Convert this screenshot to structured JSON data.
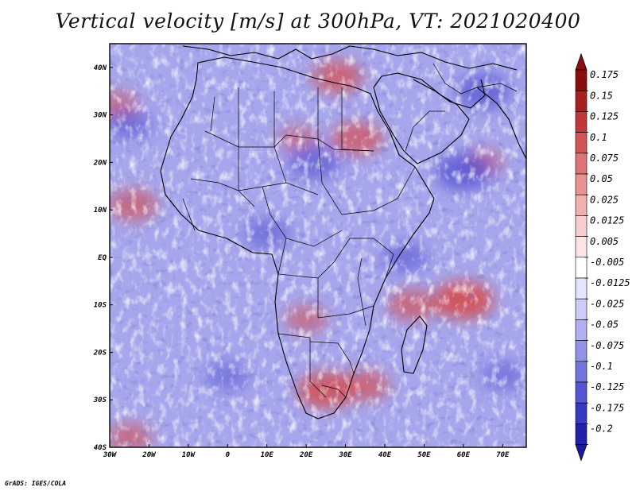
{
  "title": "Vertical velocity [m/s] at 300hPa, VT: 2021020400",
  "credit": "GrADS: IGES/COLA",
  "map": {
    "lon_range": [
      -30,
      76
    ],
    "lat_range": [
      -40,
      45
    ],
    "lon_ticks": [
      {
        "value": -30,
        "label": "30W"
      },
      {
        "value": -20,
        "label": "20W"
      },
      {
        "value": -10,
        "label": "10W"
      },
      {
        "value": 0,
        "label": "0"
      },
      {
        "value": 10,
        "label": "10E"
      },
      {
        "value": 20,
        "label": "20E"
      },
      {
        "value": 30,
        "label": "30E"
      },
      {
        "value": 40,
        "label": "40E"
      },
      {
        "value": 50,
        "label": "50E"
      },
      {
        "value": 60,
        "label": "60E"
      },
      {
        "value": 70,
        "label": "70E"
      }
    ],
    "lat_ticks": [
      {
        "value": 40,
        "label": "40N"
      },
      {
        "value": 30,
        "label": "30N"
      },
      {
        "value": 20,
        "label": "20N"
      },
      {
        "value": 10,
        "label": "10N"
      },
      {
        "value": 0,
        "label": "EQ"
      },
      {
        "value": -10,
        "label": "10S"
      },
      {
        "value": -20,
        "label": "20S"
      },
      {
        "value": -30,
        "label": "30S"
      },
      {
        "value": -40,
        "label": "40S"
      }
    ]
  },
  "colorbar": {
    "levels": [
      {
        "label": "0.175",
        "color": "#8b0e0e"
      },
      {
        "label": "0.15",
        "color": "#a82020"
      },
      {
        "label": "0.125",
        "color": "#c03838"
      },
      {
        "label": "0.1",
        "color": "#d25656"
      },
      {
        "label": "0.075",
        "color": "#de7474"
      },
      {
        "label": "0.05",
        "color": "#e89292"
      },
      {
        "label": "0.025",
        "color": "#f0b0b0"
      },
      {
        "label": "0.0125",
        "color": "#f6cccc"
      },
      {
        "label": "0.005",
        "color": "#fbe4e4"
      },
      {
        "label": "-0.005",
        "color": "#ffffff"
      },
      {
        "label": "-0.0125",
        "color": "#e4e4fb"
      },
      {
        "label": "-0.025",
        "color": "#ccccf6"
      },
      {
        "label": "-0.05",
        "color": "#b0b0f0"
      },
      {
        "label": "-0.075",
        "color": "#9292e8"
      },
      {
        "label": "-0.1",
        "color": "#7474de"
      },
      {
        "label": "-0.125",
        "color": "#5656d2"
      },
      {
        "label": "-0.175",
        "color": "#3838c0"
      },
      {
        "label": "-0.2",
        "color": "#2020a8"
      }
    ],
    "top_color": "#8b0e0e",
    "bottom_color": "#1a1a9a"
  },
  "field": {
    "base_color": "#a6a6ec",
    "positive_regions": [
      {
        "lon": -24,
        "lat": 11,
        "value": 0.06
      },
      {
        "lon": -28,
        "lat": 32,
        "value": 0.04
      },
      {
        "lon": 33,
        "lat": 25,
        "value": 0.07
      },
      {
        "lon": 25,
        "lat": -28,
        "value": 0.09
      },
      {
        "lon": 35,
        "lat": -27,
        "value": 0.06
      },
      {
        "lon": 60,
        "lat": -9,
        "value": 0.1
      },
      {
        "lon": 47,
        "lat": -10,
        "value": 0.06
      },
      {
        "lon": 28,
        "lat": 38,
        "value": 0.07
      },
      {
        "lon": 18,
        "lat": 25,
        "value": 0.03
      },
      {
        "lon": 20,
        "lat": -13,
        "value": 0.04
      },
      {
        "lon": -25,
        "lat": -38,
        "value": 0.05
      },
      {
        "lon": 65,
        "lat": 20,
        "value": 0.03
      }
    ],
    "negative_regions": [
      {
        "lon": 65,
        "lat": 35,
        "value": -0.08
      },
      {
        "lon": 22,
        "lat": 20,
        "value": -0.07
      },
      {
        "lon": 60,
        "lat": 18,
        "value": -0.09
      },
      {
        "lon": -25,
        "lat": 28,
        "value": -0.05
      },
      {
        "lon": 0,
        "lat": -25,
        "value": -0.04
      },
      {
        "lon": 10,
        "lat": 5,
        "value": -0.05
      },
      {
        "lon": 70,
        "lat": -25,
        "value": -0.04
      },
      {
        "lon": 45,
        "lat": 0,
        "value": -0.05
      }
    ]
  }
}
